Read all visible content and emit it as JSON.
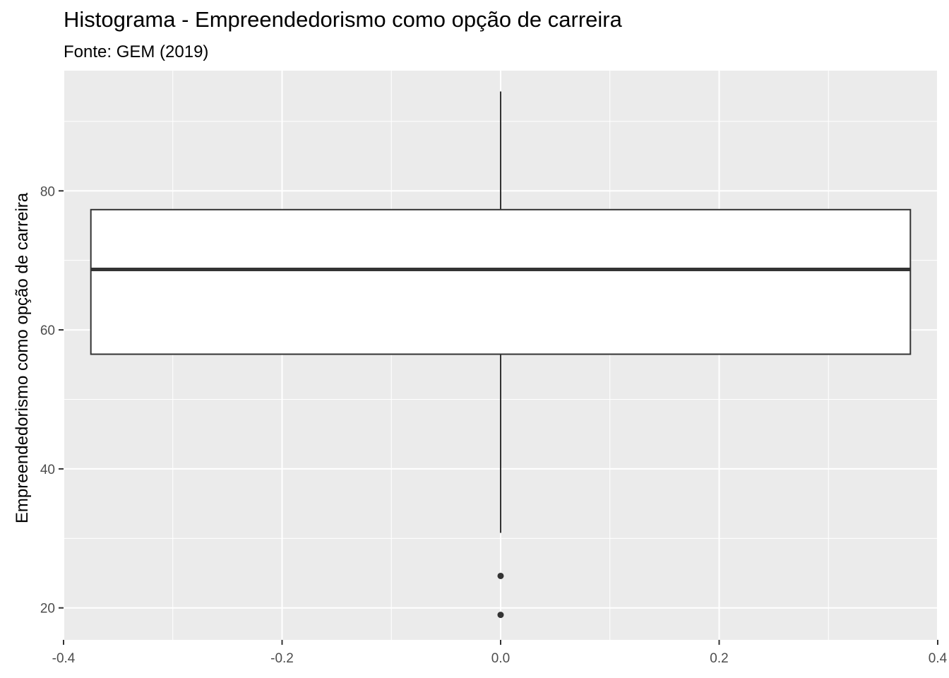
{
  "chart_data": {
    "type": "boxplot",
    "title": "Histograma - Empreendedorismo como opção de carreira",
    "subtitle": "Fonte: GEM (2019)",
    "xlabel": "",
    "ylabel": "Empreendedorismo como opção de carreira",
    "xlim": [
      -0.4,
      0.4
    ],
    "ylim": [
      15.4,
      97.3
    ],
    "x_ticks": [
      -0.4,
      -0.2,
      0.0,
      0.2,
      0.4
    ],
    "x_tick_labels": [
      "-0.4",
      "-0.2",
      "0.0",
      "0.2",
      "0.4"
    ],
    "y_ticks": [
      20,
      40,
      60,
      80
    ],
    "y_tick_labels": [
      "20",
      "40",
      "60",
      "80"
    ],
    "grid": true,
    "box": {
      "x_center": 0.0,
      "x_left": -0.375,
      "x_right": 0.375,
      "whisker_low": 30.8,
      "q1": 56.5,
      "median": 68.7,
      "q3": 77.3,
      "whisker_high": 94.3,
      "outliers": [
        24.6,
        19.0
      ]
    },
    "colors": {
      "panel_background": "#ebebeb",
      "grid_line": "#ffffff",
      "box_fill": "#ffffff",
      "box_line": "#333333",
      "tick_label": "#4d4d4d"
    }
  }
}
